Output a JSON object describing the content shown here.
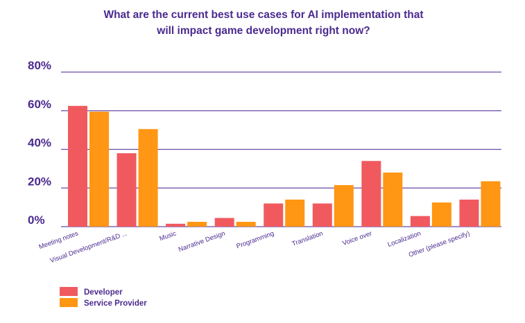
{
  "chart_data": {
    "type": "bar",
    "title_lines": [
      "What are the current best use cases for AI implementation that",
      "will impact game development right now?"
    ],
    "categories": [
      "Meeting notes",
      "Visual Development/R&D ...",
      "Music",
      "Narrative Design",
      "Programming",
      "Translation",
      "Voice over",
      "Localization",
      "Other (please specify)"
    ],
    "series": [
      {
        "name": "Developer",
        "color": "#f05a5f",
        "values": [
          62.5,
          38,
          1.5,
          4.5,
          12,
          12,
          34,
          5.5,
          14
        ]
      },
      {
        "name": "Service Provider",
        "color": "#ff9614",
        "values": [
          59.5,
          50.5,
          2.5,
          2.5,
          14,
          21.5,
          28,
          12.5,
          23.5
        ]
      }
    ],
    "ylim": [
      0,
      80
    ],
    "yticks": [
      "0%",
      "20%",
      "40%",
      "60%",
      "80%"
    ],
    "grid": true,
    "grid_color": "#6a4aa6",
    "text_color": "#4b2a8f",
    "legend_position": "bottom-left"
  }
}
